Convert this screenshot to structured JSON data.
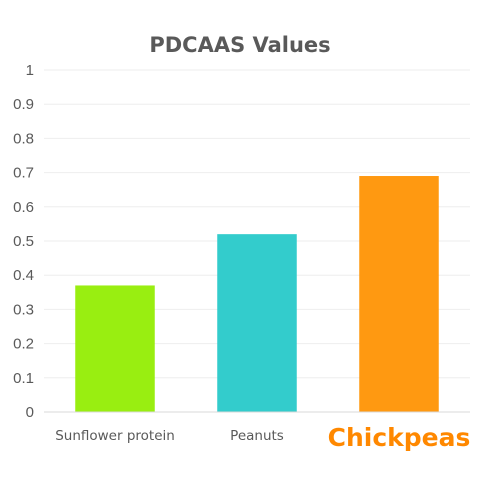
{
  "chart_data": {
    "type": "bar",
    "title": "PDCAAS Values",
    "categories": [
      "Sunflower protein",
      "Peanuts",
      "Chickpeas"
    ],
    "values": [
      0.37,
      0.52,
      0.69
    ],
    "colors": [
      "#99ee11",
      "#33cccc",
      "#ff9911"
    ],
    "highlight_category": "Chickpeas",
    "highlight_color": "#ff8800",
    "ylim": [
      0,
      1
    ],
    "yticks": [
      "0",
      "0.1",
      "0.2",
      "0.3",
      "0.4",
      "0.5",
      "0.6",
      "0.7",
      "0.8",
      "0.9",
      "1"
    ],
    "grid": true,
    "xlabel": "",
    "ylabel": ""
  }
}
